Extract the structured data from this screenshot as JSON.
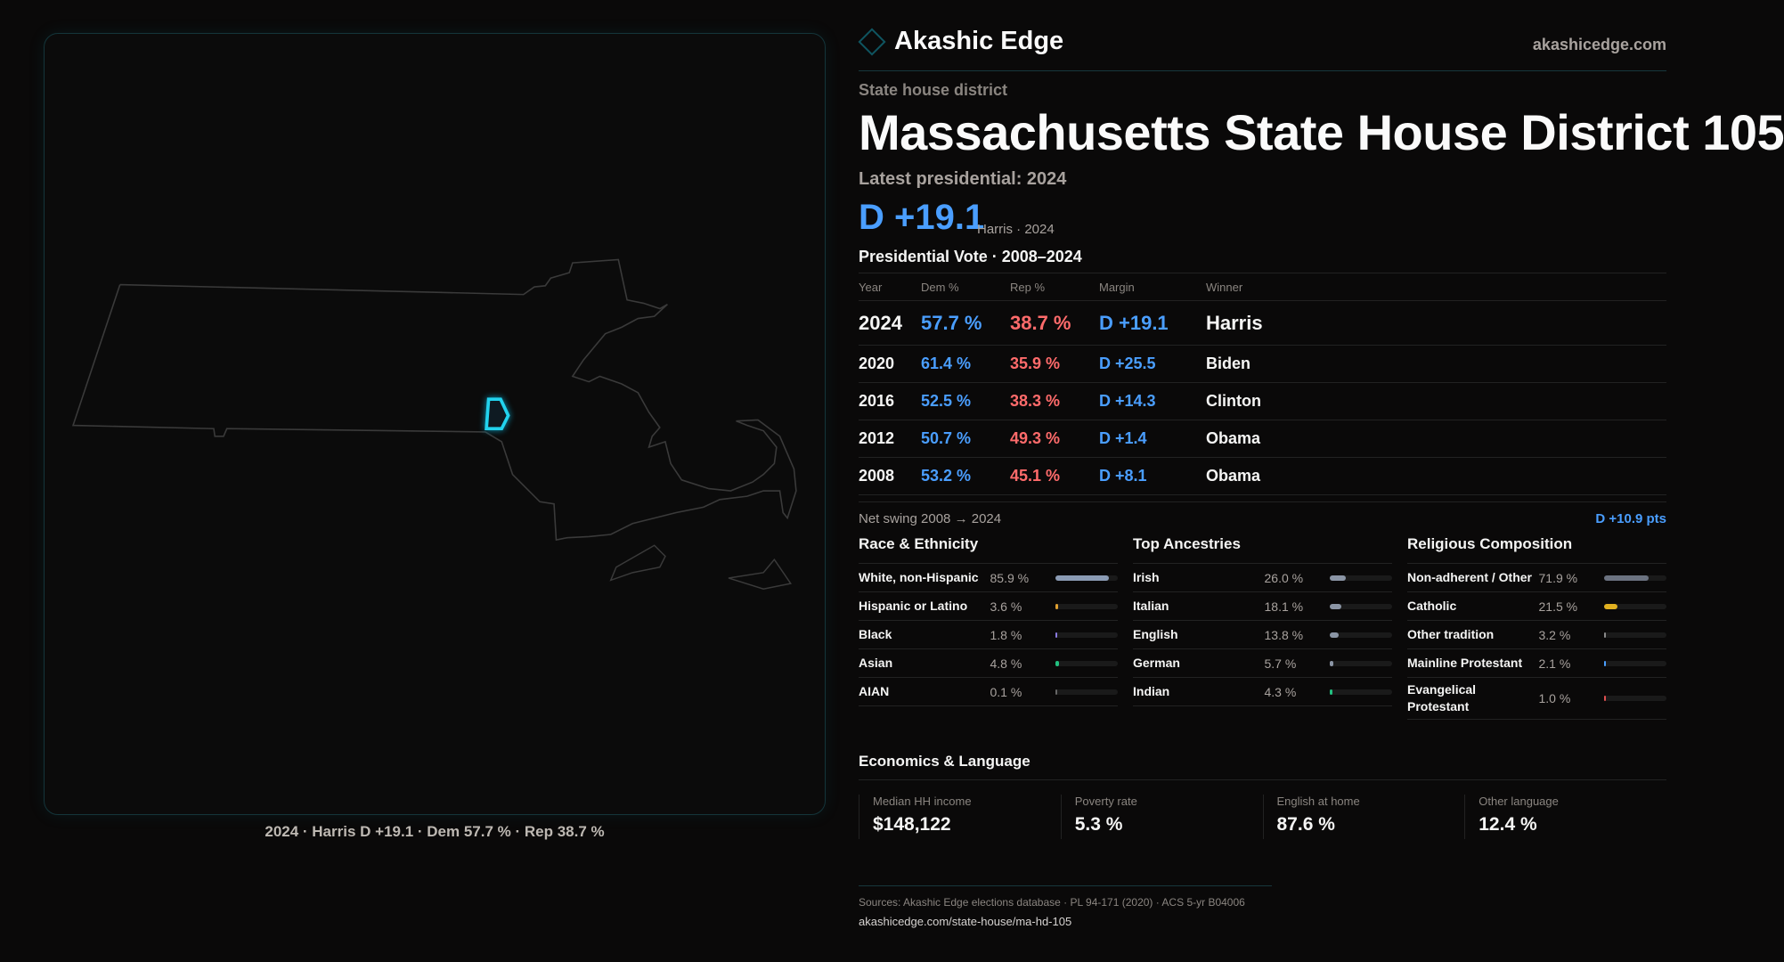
{
  "map": {
    "caption": "2024 · Harris D +19.1 · Dem 57.7 % · Rep 38.7 %",
    "highlight_color": "#22d3ee"
  },
  "header": {
    "brand": "Akashic Edge",
    "site": "akashicedge.com",
    "logo_icon": "diamond-icon"
  },
  "kicker": "State house district",
  "title": "Massachusetts State House District 105",
  "latest_label": "Latest presidential: 2024",
  "headline": {
    "margin": "D +19.1",
    "sub": "Harris · 2024"
  },
  "colors": {
    "dem": "#4a9eff",
    "rep": "#ff6b6b"
  },
  "pres": {
    "title": "Presidential Vote · 2008–2024",
    "columns": [
      "Year",
      "Dem %",
      "Rep %",
      "Margin",
      "Winner"
    ],
    "rows": [
      {
        "year": "2024",
        "dem": "57.7 %",
        "rep": "38.7 %",
        "margin": "D +19.1",
        "winner": "Harris"
      },
      {
        "year": "2020",
        "dem": "61.4 %",
        "rep": "35.9 %",
        "margin": "D +25.5",
        "winner": "Biden"
      },
      {
        "year": "2016",
        "dem": "52.5 %",
        "rep": "38.3 %",
        "margin": "D +14.3",
        "winner": "Clinton"
      },
      {
        "year": "2012",
        "dem": "50.7 %",
        "rep": "49.3 %",
        "margin": "D +1.4",
        "winner": "Obama"
      },
      {
        "year": "2008",
        "dem": "53.2 %",
        "rep": "45.1 %",
        "margin": "D +8.1",
        "winner": "Obama"
      }
    ]
  },
  "swing": {
    "label": "Net swing 2008 → 2024",
    "value": "D +10.9 pts"
  },
  "race": {
    "title": "Race & Ethnicity",
    "items": [
      {
        "label": "White, non-Hispanic",
        "value": "85.9 %",
        "pct": 85.9,
        "color": "#8b9bb4"
      },
      {
        "label": "Hispanic or Latino",
        "value": "3.6 %",
        "pct": 3.6,
        "color": "#e0a030"
      },
      {
        "label": "Black",
        "value": "1.8 %",
        "pct": 1.8,
        "color": "#8b7be0"
      },
      {
        "label": "Asian",
        "value": "4.8 %",
        "pct": 4.8,
        "color": "#22c080"
      },
      {
        "label": "AIAN",
        "value": "0.1 %",
        "pct": 0.1,
        "color": "#666"
      }
    ]
  },
  "ancestry": {
    "title": "Top Ancestries",
    "items": [
      {
        "label": "Irish",
        "value": "26.0 %",
        "pct": 26.0,
        "color": "#8b95a5"
      },
      {
        "label": "Italian",
        "value": "18.1 %",
        "pct": 18.1,
        "color": "#8b95a5"
      },
      {
        "label": "English",
        "value": "13.8 %",
        "pct": 13.8,
        "color": "#8b95a5"
      },
      {
        "label": "German",
        "value": "5.7 %",
        "pct": 5.7,
        "color": "#8b95a5"
      },
      {
        "label": "Indian",
        "value": "4.3 %",
        "pct": 4.3,
        "color": "#22c080"
      }
    ]
  },
  "religion": {
    "title": "Religious Composition",
    "items": [
      {
        "label": "Non-adherent / Other",
        "value": "71.9 %",
        "pct": 71.9,
        "color": "#6b7280"
      },
      {
        "label": "Catholic",
        "value": "21.5 %",
        "pct": 21.5,
        "color": "#e0b020"
      },
      {
        "label": "Other tradition",
        "value": "3.2 %",
        "pct": 3.2,
        "color": "#8a8a8a"
      },
      {
        "label": "Mainline Protestant",
        "value": "2.1 %",
        "pct": 2.1,
        "color": "#4a9eff"
      },
      {
        "label": "Evangelical Protestant",
        "value": "1.0 %",
        "pct": 1.0,
        "color": "#e05050"
      }
    ]
  },
  "economics": {
    "title": "Economics & Language",
    "cards": [
      {
        "label": "Median HH income",
        "value": "$148,122"
      },
      {
        "label": "Poverty rate",
        "value": "5.3 %"
      },
      {
        "label": "English at home",
        "value": "87.6 %"
      },
      {
        "label": "Other language",
        "value": "12.4 %"
      }
    ]
  },
  "footer": {
    "sources": "Sources: Akashic Edge elections database · PL 94-171 (2020) · ACS 5-yr B04006",
    "url": "akashicedge.com/state-house/ma-hd-105"
  }
}
